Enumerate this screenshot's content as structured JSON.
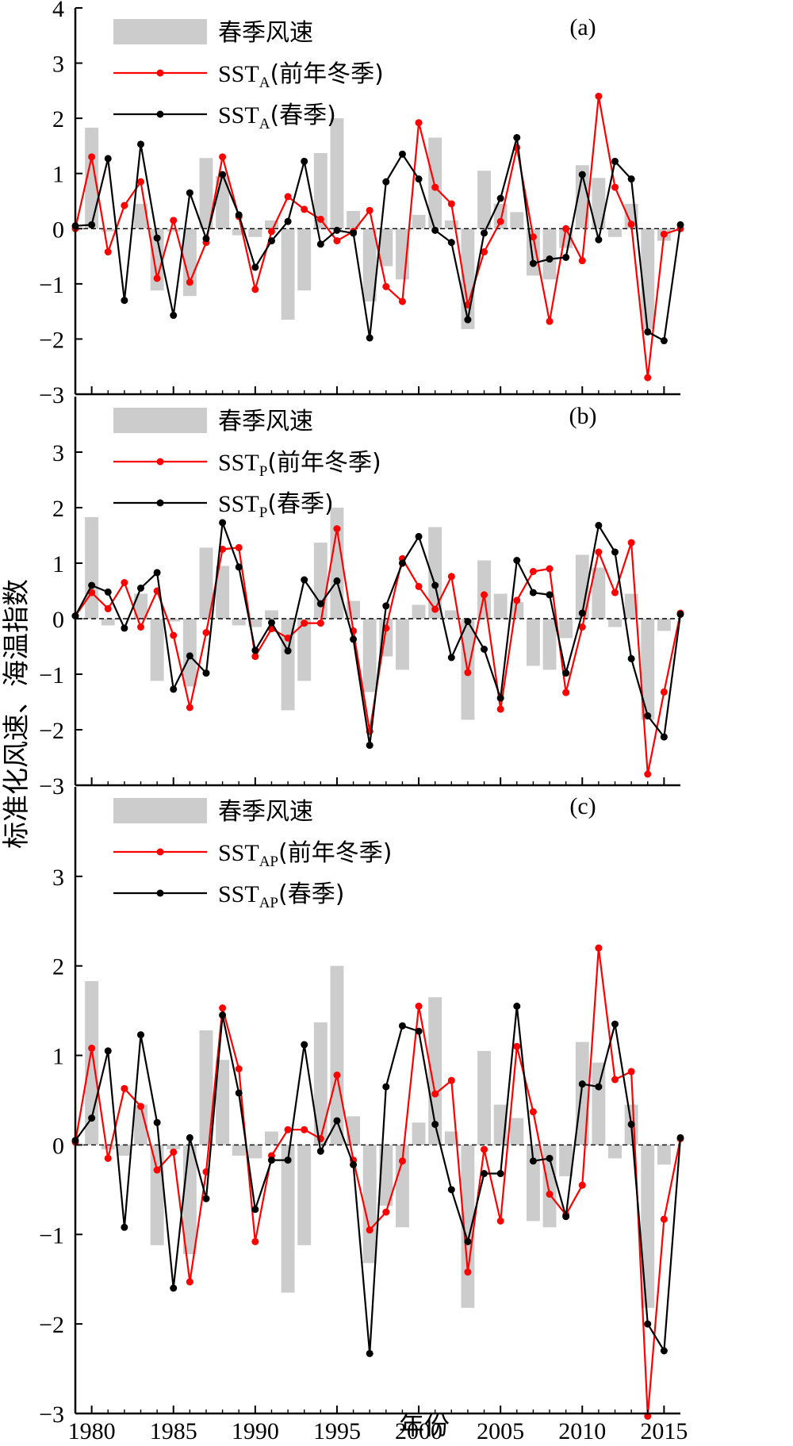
{
  "colors": {
    "bar": "#cccccc",
    "winter_line": "#ff0000",
    "spring_line": "#000000",
    "axis": "#000000"
  },
  "figure": {
    "ylabel": "标准化风速、海温指数",
    "xlabel": "年份"
  },
  "chart_data": [
    {
      "type": "bar+line",
      "panel_label": "(a)",
      "xlim": [
        1979,
        2016
      ],
      "ylim": [
        -3,
        4
      ],
      "yticks": [
        -3,
        -2,
        -1,
        0,
        1,
        2,
        3,
        4
      ],
      "ytick_labels": [
        "−3",
        "−2",
        "−1",
        "0",
        "1",
        "2",
        "3",
        "4"
      ],
      "legend": [
        {
          "kind": "bar",
          "label": "春季风速"
        },
        {
          "kind": "line",
          "series": "winter",
          "label_main": "SST",
          "label_sub": "A",
          "label_tail": "(前年冬季)"
        },
        {
          "kind": "line",
          "series": "spring",
          "label_main": "SST",
          "label_sub": "A",
          "label_tail": "(春季)"
        }
      ],
      "bar_series": {
        "name": "春季风速",
        "years": [
          1980,
          1981,
          1982,
          1983,
          1984,
          1985,
          1986,
          1987,
          1988,
          1989,
          1990,
          1991,
          1992,
          1993,
          1994,
          1995,
          1996,
          1997,
          1998,
          1999,
          2000,
          2001,
          2002,
          2003,
          2004,
          2005,
          2006,
          2007,
          2008,
          2009,
          2010,
          2011,
          2012,
          2013,
          2014,
          2015
        ],
        "values": [
          1.83,
          -0.05,
          0.0,
          0.45,
          -1.12,
          -0.05,
          -1.22,
          1.28,
          0.95,
          -0.12,
          -0.15,
          0.15,
          -1.65,
          -1.12,
          1.37,
          2.0,
          0.32,
          -1.32,
          -0.68,
          -0.92,
          0.25,
          1.65,
          0.15,
          -1.82,
          1.05,
          0.45,
          0.3,
          -0.85,
          -0.92,
          -0.35,
          1.15,
          0.92,
          -0.15,
          0.45,
          -1.82,
          -0.22
        ]
      },
      "series": [
        {
          "key": "winter",
          "x": [
            1979,
            1980,
            1981,
            1982,
            1983,
            1984,
            1985,
            1986,
            1987,
            1988,
            1989,
            1990,
            1991,
            1992,
            1993,
            1994,
            1995,
            1996,
            1997,
            1998,
            1999,
            2000,
            2001,
            2002,
            2003,
            2004,
            2005,
            2006,
            2007,
            2008,
            2009,
            2010,
            2011,
            2012,
            2013,
            2014,
            2015,
            2016
          ],
          "y": [
            0.0,
            1.3,
            -0.42,
            0.42,
            0.85,
            -0.9,
            0.15,
            -0.97,
            -0.25,
            1.3,
            0.22,
            -1.1,
            -0.05,
            0.58,
            0.35,
            0.17,
            -0.22,
            -0.05,
            0.33,
            -1.05,
            -1.32,
            1.92,
            0.75,
            0.45,
            -1.38,
            -0.42,
            0.13,
            1.47,
            -0.15,
            -1.68,
            0.0,
            -0.58,
            2.4,
            0.75,
            0.08,
            -2.7,
            -0.1,
            0.0
          ]
        },
        {
          "key": "spring",
          "x": [
            1979,
            1980,
            1981,
            1982,
            1983,
            1984,
            1985,
            1986,
            1987,
            1988,
            1989,
            1990,
            1991,
            1992,
            1993,
            1994,
            1995,
            1996,
            1997,
            1998,
            1999,
            2000,
            2001,
            2002,
            2003,
            2004,
            2005,
            2006,
            2007,
            2008,
            2009,
            2010,
            2011,
            2012,
            2013,
            2014,
            2015,
            2016
          ],
          "y": [
            0.05,
            0.07,
            1.27,
            -1.3,
            1.53,
            -0.17,
            -1.57,
            0.65,
            -0.18,
            0.98,
            0.25,
            -0.7,
            -0.22,
            0.13,
            1.22,
            -0.28,
            -0.03,
            -0.08,
            -1.98,
            0.85,
            1.35,
            0.9,
            -0.03,
            -0.25,
            -1.65,
            -0.08,
            0.55,
            1.65,
            -0.63,
            -0.55,
            -0.52,
            0.98,
            -0.2,
            1.22,
            0.9,
            -1.87,
            -2.03,
            0.07
          ]
        }
      ]
    },
    {
      "type": "bar+line",
      "panel_label": "(b)",
      "xlim": [
        1979,
        2016
      ],
      "ylim": [
        -3,
        4
      ],
      "yticks": [
        -3,
        -2,
        -1,
        0,
        1,
        2,
        3
      ],
      "ytick_labels": [
        "−3",
        "−2",
        "−1",
        "0",
        "1",
        "2",
        "3"
      ],
      "legend": [
        {
          "kind": "bar",
          "label": "春季风速"
        },
        {
          "kind": "line",
          "series": "winter",
          "label_main": "SST",
          "label_sub": "P",
          "label_tail": "(前年冬季)"
        },
        {
          "kind": "line",
          "series": "spring",
          "label_main": "SST",
          "label_sub": "P",
          "label_tail": "(春季)"
        }
      ],
      "bar_series": {
        "name": "春季风速",
        "years": [
          1980,
          1981,
          1982,
          1983,
          1984,
          1985,
          1986,
          1987,
          1988,
          1989,
          1990,
          1991,
          1992,
          1993,
          1994,
          1995,
          1996,
          1997,
          1998,
          1999,
          2000,
          2001,
          2002,
          2003,
          2004,
          2005,
          2006,
          2007,
          2008,
          2009,
          2010,
          2011,
          2012,
          2013,
          2014,
          2015
        ],
        "values": [
          1.83,
          -0.12,
          0.0,
          0.45,
          -1.12,
          -0.05,
          -1.22,
          1.28,
          0.95,
          -0.12,
          -0.15,
          0.15,
          -1.65,
          -1.12,
          1.37,
          2.0,
          0.32,
          -1.32,
          -0.68,
          -0.92,
          0.25,
          1.65,
          0.15,
          -1.82,
          1.05,
          0.45,
          0.3,
          -0.85,
          -0.92,
          -0.35,
          1.15,
          0.92,
          -0.15,
          0.45,
          -1.82,
          -0.22
        ]
      },
      "series": [
        {
          "key": "winter",
          "x": [
            1979,
            1980,
            1981,
            1982,
            1983,
            1984,
            1985,
            1986,
            1987,
            1988,
            1989,
            1990,
            1991,
            1992,
            1993,
            1994,
            1995,
            1996,
            1997,
            1998,
            1999,
            2000,
            2001,
            2002,
            2003,
            2004,
            2005,
            2006,
            2007,
            2008,
            2009,
            2010,
            2011,
            2012,
            2013,
            2014,
            2015,
            2016
          ],
          "y": [
            0.05,
            0.47,
            0.18,
            0.65,
            -0.15,
            0.5,
            -0.3,
            -1.6,
            -0.25,
            1.25,
            1.28,
            -0.68,
            -0.18,
            -0.35,
            -0.08,
            -0.08,
            1.62,
            -0.22,
            -2.03,
            -0.17,
            1.08,
            0.58,
            0.17,
            0.76,
            -0.97,
            0.43,
            -1.63,
            0.33,
            0.85,
            0.9,
            -1.33,
            -0.15,
            1.2,
            0.47,
            1.37,
            -2.8,
            -1.32,
            0.1
          ]
        },
        {
          "key": "spring",
          "x": [
            1979,
            1980,
            1981,
            1982,
            1983,
            1984,
            1985,
            1986,
            1987,
            1988,
            1989,
            1990,
            1991,
            1992,
            1993,
            1994,
            1995,
            1996,
            1997,
            1998,
            1999,
            2000,
            2001,
            2002,
            2003,
            2004,
            2005,
            2006,
            2007,
            2008,
            2009,
            2010,
            2011,
            2012,
            2013,
            2014,
            2015,
            2016
          ],
          "y": [
            0.05,
            0.6,
            0.48,
            -0.17,
            0.55,
            0.83,
            -1.27,
            -0.67,
            -0.98,
            1.73,
            0.93,
            -0.57,
            -0.07,
            -0.58,
            0.7,
            0.27,
            0.68,
            -0.37,
            -2.28,
            0.23,
            1.0,
            1.48,
            0.6,
            -0.7,
            -0.05,
            -0.55,
            -1.43,
            1.05,
            0.47,
            0.43,
            -0.98,
            0.1,
            1.68,
            1.2,
            -0.72,
            -1.75,
            -2.13,
            0.08
          ]
        }
      ]
    },
    {
      "type": "bar+line",
      "panel_label": "(c)",
      "xlim": [
        1979,
        2016
      ],
      "ylim": [
        -3,
        4
      ],
      "yticks": [
        -3,
        -2,
        -1,
        0,
        1,
        2,
        3
      ],
      "ytick_labels": [
        "−3",
        "−2",
        "−1",
        "0",
        "1",
        "2",
        "3"
      ],
      "legend": [
        {
          "kind": "bar",
          "label": "春季风速"
        },
        {
          "kind": "line",
          "series": "winter",
          "label_main": "SST",
          "label_sub": "AP",
          "label_tail": "(前年冬季)"
        },
        {
          "kind": "line",
          "series": "spring",
          "label_main": "SST",
          "label_sub": "AP",
          "label_tail": "(春季)"
        }
      ],
      "xticks": [
        1980,
        1985,
        1990,
        1995,
        2000,
        2005,
        2010,
        2015
      ],
      "xtick_labels": [
        "1980",
        "1985",
        "1990",
        "1995",
        "2000",
        "2005",
        "2010",
        "2015"
      ],
      "bar_series": {
        "name": "春季风速",
        "years": [
          1980,
          1981,
          1982,
          1983,
          1984,
          1985,
          1986,
          1987,
          1988,
          1989,
          1990,
          1991,
          1992,
          1993,
          1994,
          1995,
          1996,
          1997,
          1998,
          1999,
          2000,
          2001,
          2002,
          2003,
          2004,
          2005,
          2006,
          2007,
          2008,
          2009,
          2010,
          2011,
          2012,
          2013,
          2014,
          2015
        ],
        "values": [
          1.83,
          -0.05,
          -0.12,
          0.45,
          -1.12,
          -0.05,
          -1.22,
          1.28,
          0.95,
          -0.12,
          -0.15,
          0.15,
          -1.65,
          -1.12,
          1.37,
          2.0,
          0.32,
          -1.32,
          -0.68,
          -0.92,
          0.25,
          1.65,
          0.15,
          -1.82,
          1.05,
          0.45,
          0.3,
          -0.85,
          -0.92,
          -0.35,
          1.15,
          0.92,
          -0.15,
          0.45,
          -1.82,
          -0.22
        ]
      },
      "series": [
        {
          "key": "winter",
          "x": [
            1979,
            1980,
            1981,
            1982,
            1983,
            1984,
            1985,
            1986,
            1987,
            1988,
            1989,
            1990,
            1991,
            1992,
            1993,
            1994,
            1995,
            1996,
            1997,
            1998,
            1999,
            2000,
            2001,
            2002,
            2003,
            2004,
            2005,
            2006,
            2007,
            2008,
            2009,
            2010,
            2011,
            2012,
            2013,
            2014,
            2015,
            2016
          ],
          "y": [
            0.03,
            1.08,
            -0.15,
            0.63,
            0.43,
            -0.28,
            -0.08,
            -1.53,
            -0.3,
            1.53,
            0.85,
            -1.08,
            -0.12,
            0.17,
            0.17,
            0.07,
            0.78,
            -0.17,
            -0.95,
            -0.75,
            -0.18,
            1.55,
            0.57,
            0.72,
            -1.42,
            -0.05,
            -0.85,
            1.1,
            0.37,
            -0.55,
            -0.78,
            -0.45,
            2.2,
            0.73,
            0.82,
            -3.03,
            -0.83,
            0.07
          ]
        },
        {
          "key": "spring",
          "x": [
            1979,
            1980,
            1981,
            1982,
            1983,
            1984,
            1985,
            1986,
            1987,
            1988,
            1989,
            1990,
            1991,
            1992,
            1993,
            1994,
            1995,
            1996,
            1997,
            1998,
            1999,
            2000,
            2001,
            2002,
            2003,
            2004,
            2005,
            2006,
            2007,
            2008,
            2009,
            2010,
            2011,
            2012,
            2013,
            2014,
            2015,
            2016
          ],
          "y": [
            0.05,
            0.3,
            1.05,
            -0.92,
            1.23,
            0.25,
            -1.6,
            0.08,
            -0.6,
            1.45,
            0.58,
            -0.72,
            -0.17,
            -0.17,
            1.12,
            -0.07,
            0.27,
            -0.22,
            -2.33,
            0.65,
            1.33,
            1.27,
            0.23,
            -0.5,
            -1.08,
            -0.32,
            -0.32,
            1.55,
            -0.18,
            -0.15,
            -0.8,
            0.68,
            0.65,
            1.35,
            0.23,
            -2.0,
            -2.3,
            0.08
          ]
        }
      ]
    }
  ]
}
